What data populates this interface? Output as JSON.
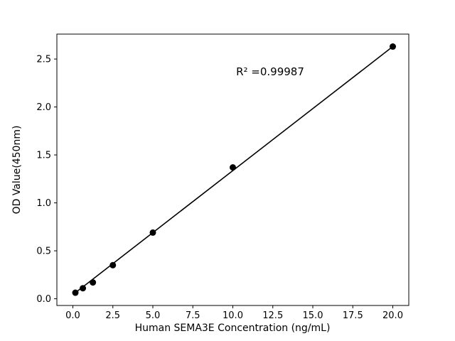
{
  "chart_data": {
    "type": "scatter",
    "title": "",
    "xlabel": "Human SEMA3E Concentration (ng/mL)",
    "ylabel": "OD Value(450nm)",
    "annotation": "R² =0.99987",
    "x": [
      0.156,
      0.625,
      1.25,
      2.5,
      5,
      10,
      20
    ],
    "y": [
      0.063,
      0.11,
      0.17,
      0.35,
      0.69,
      1.37,
      2.63
    ],
    "fit_line": {
      "x1": 0.156,
      "y1": 0.063,
      "x2": 20,
      "y2": 2.63
    },
    "xlim": [
      -1,
      21
    ],
    "ylim": [
      -0.07,
      2.76
    ],
    "xticks": [
      0.0,
      2.5,
      5.0,
      7.5,
      10.0,
      12.5,
      15.0,
      17.5,
      20.0
    ],
    "xtick_labels": [
      "0.0",
      "2.5",
      "5.0",
      "7.5",
      "10.0",
      "12.5",
      "15.0",
      "17.5",
      "20.0"
    ],
    "yticks": [
      0.0,
      0.5,
      1.0,
      1.5,
      2.0,
      2.5
    ],
    "ytick_labels": [
      "0.0",
      "0.5",
      "1.0",
      "1.5",
      "2.0",
      "2.5"
    ],
    "grid": false,
    "legend": null,
    "marker_color": "#000000",
    "line_color": "#000000",
    "background_color": "#ffffff"
  }
}
